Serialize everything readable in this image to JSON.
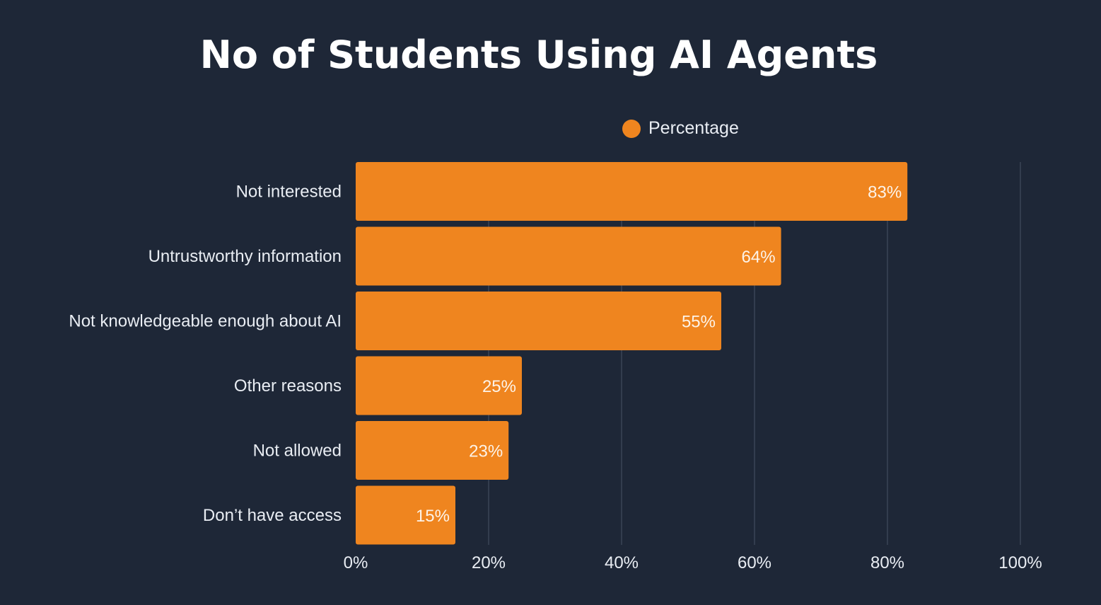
{
  "chart_data": {
    "type": "bar",
    "orientation": "horizontal",
    "title": "No of Students Using AI Agents",
    "categories": [
      "Not interested",
      "Untrustworthy information",
      "Not knowledgeable enough about AI",
      "Other reasons",
      "Not allowed",
      "Don’t have access"
    ],
    "series": [
      {
        "name": "Percentage",
        "values": [
          83,
          64,
          55,
          25,
          23,
          15
        ],
        "data_labels": [
          "83%",
          "64%",
          "55%",
          "25%",
          "23%",
          "15%"
        ]
      }
    ],
    "xlim": [
      0,
      100
    ],
    "x_ticks": [
      0,
      20,
      40,
      60,
      80,
      100
    ],
    "x_tick_labels": [
      "0%",
      "20%",
      "40%",
      "60%",
      "80%",
      "100%"
    ],
    "xlabel": "",
    "ylabel": "",
    "grid": true,
    "legend_position": "top-center",
    "colors": {
      "background": "#1e2737",
      "bar": "#ef851f",
      "grid": "#3a4556",
      "text": "#e9edf3",
      "title": "#ffffff"
    }
  }
}
